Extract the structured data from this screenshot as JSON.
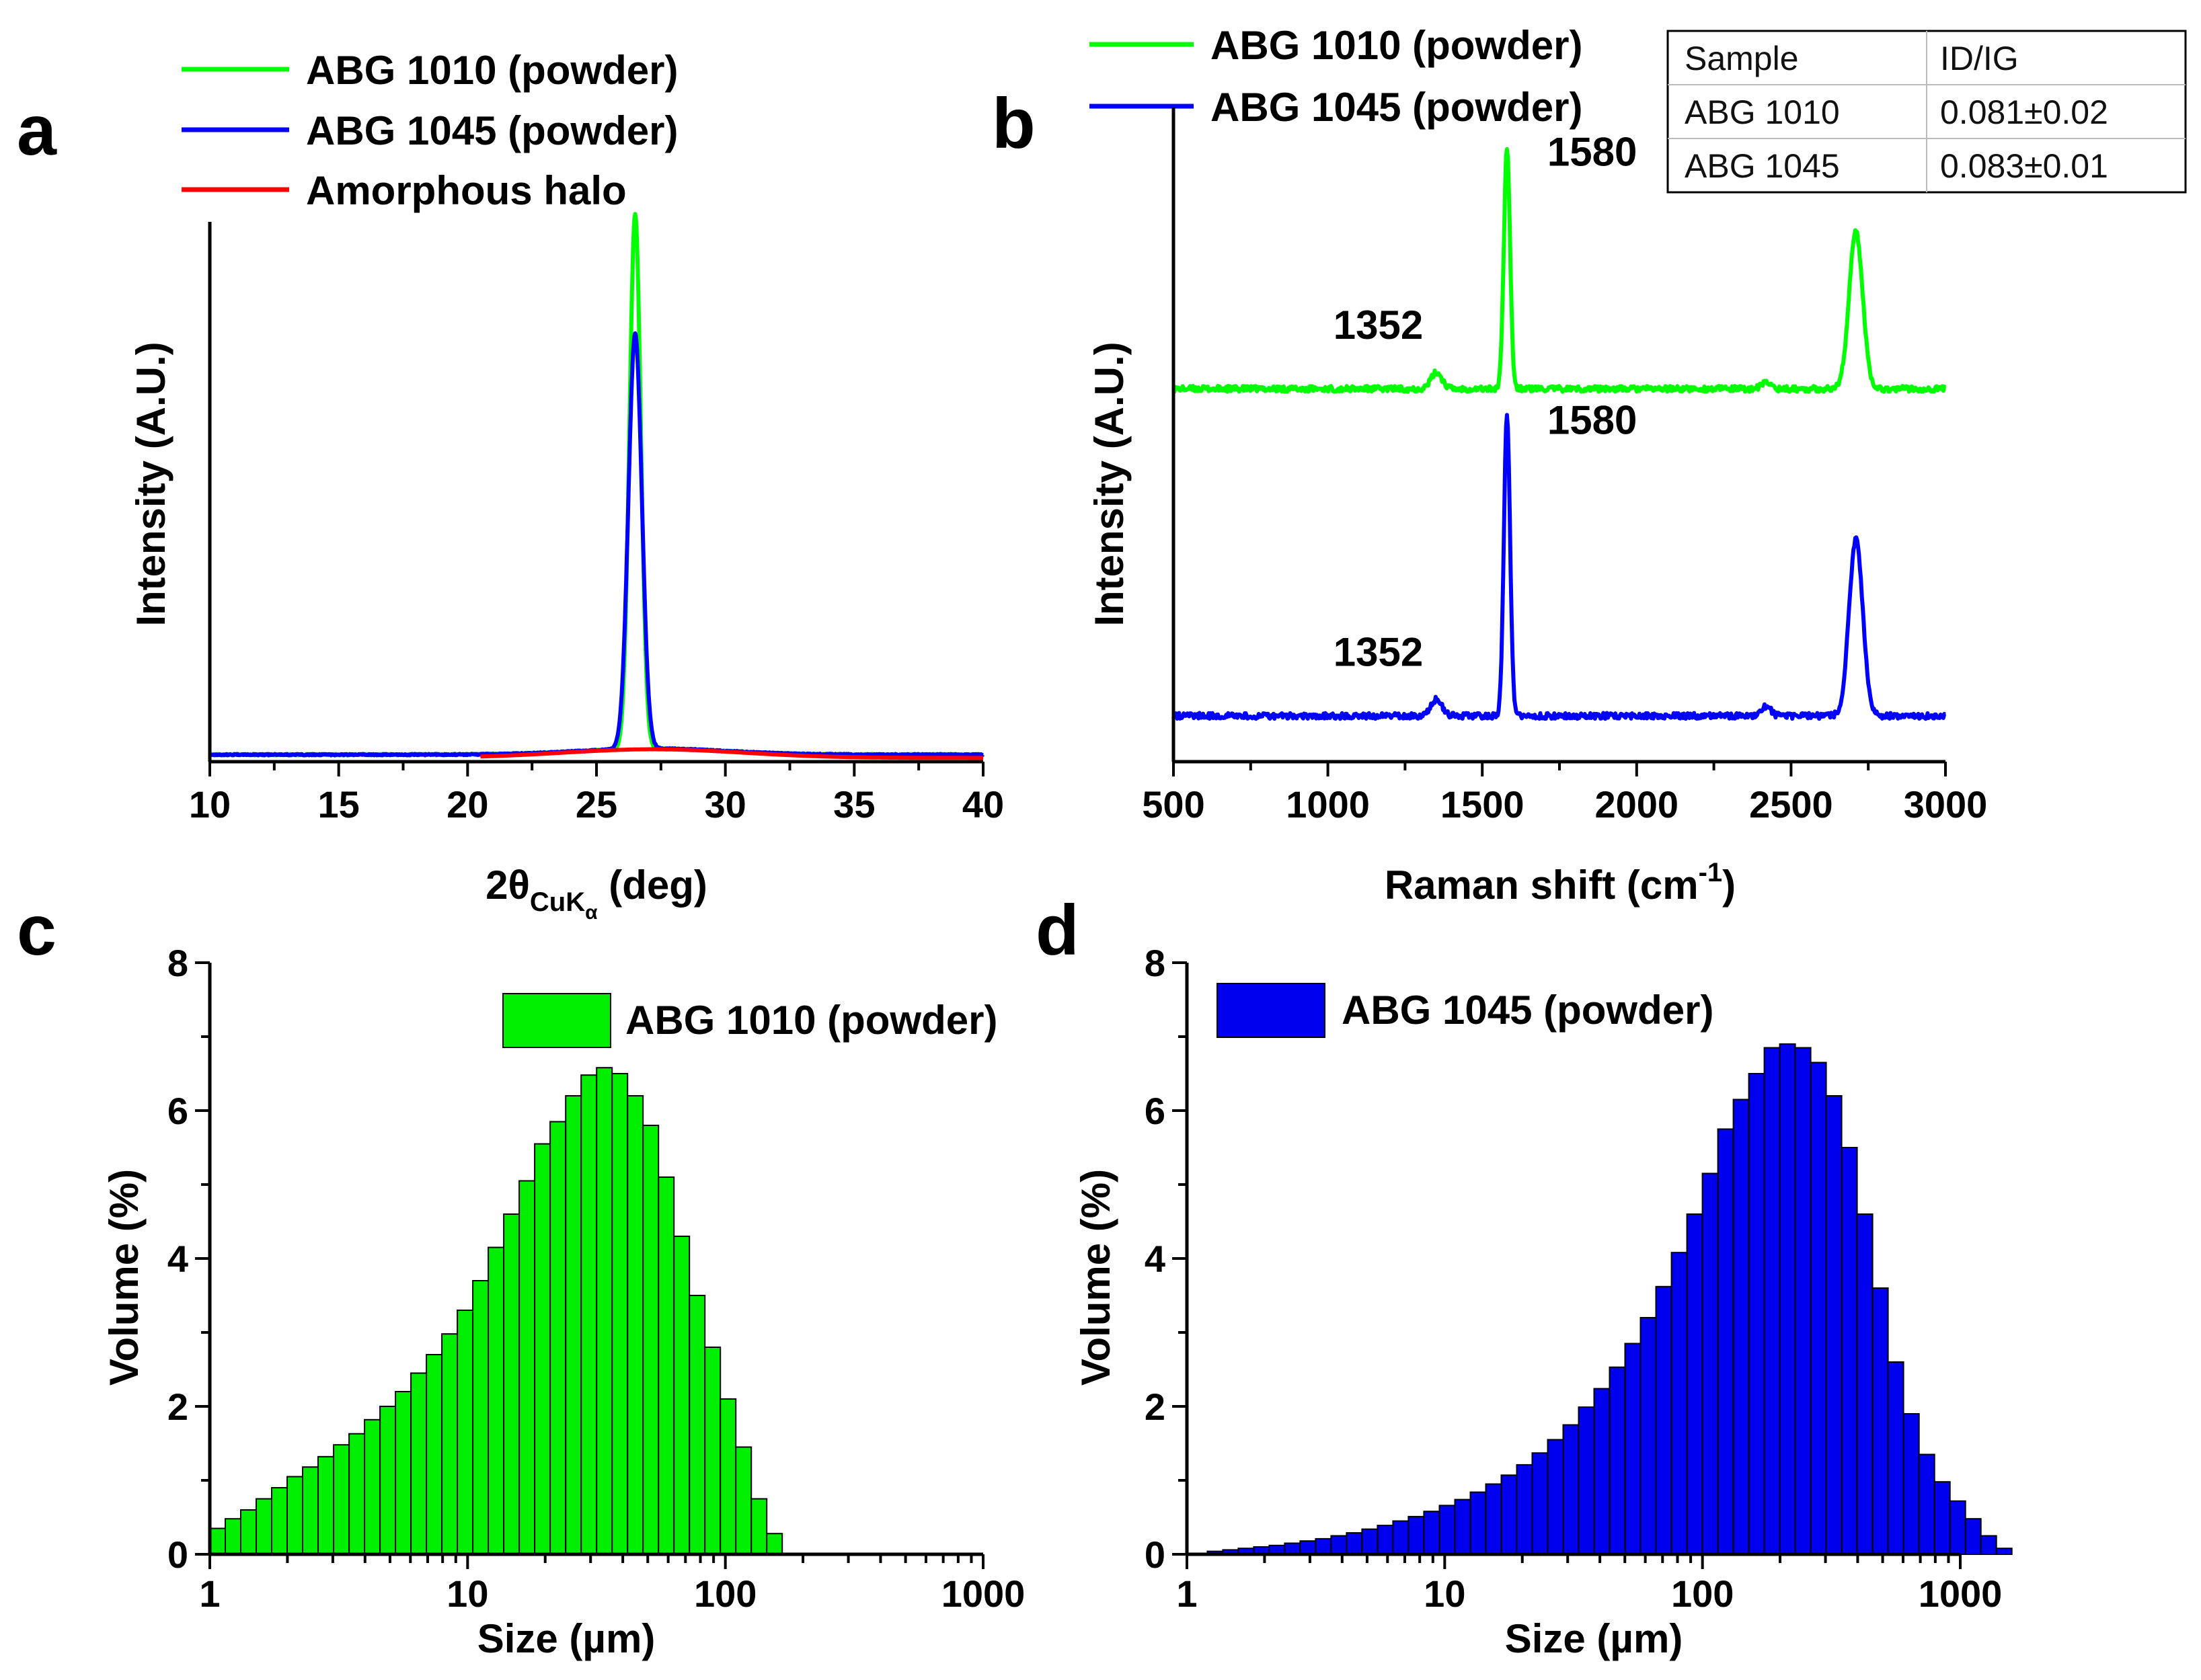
{
  "chart_data": [
    {
      "panel": "a",
      "type": "line",
      "xlabel_main": "2θ",
      "xlabel_sub": "CuK",
      "xlabel_subsub": "α",
      "xlabel_unit": " (deg)",
      "ylabel": "Intensity (A.U.)",
      "xlim": [
        10,
        40
      ],
      "ylim": [
        0,
        100
      ],
      "xticks": [
        10,
        15,
        20,
        25,
        30,
        35,
        40
      ],
      "yticks_visible": false,
      "legend": [
        "ABG 1010 (powder)",
        "ABG 1045 (powder)",
        "Amorphous halo"
      ],
      "series": [
        {
          "name": "ABG 1010 (powder)",
          "color": "#00ff00",
          "baseline": 1.3,
          "peaks": [
            {
              "center": 26.5,
              "height": 99,
              "width": 0.22
            }
          ],
          "halo": {
            "center": 27.2,
            "height": 1.1,
            "width": 2.8
          }
        },
        {
          "name": "ABG 1045 (powder)",
          "color": "#0000ff",
          "baseline": 1.3,
          "peaks": [
            {
              "center": 26.5,
              "height": 77,
              "width": 0.26
            }
          ],
          "halo": {
            "center": 27.2,
            "height": 1.1,
            "width": 2.8
          }
        },
        {
          "name": "Amorphous halo",
          "color": "#ff0000",
          "baseline": 0.7,
          "range": [
            20.5,
            40
          ],
          "halo": {
            "center": 27.2,
            "height": 1.6,
            "width": 3.5
          }
        }
      ]
    },
    {
      "panel": "b",
      "type": "line",
      "xlabel": "Raman shift (cm",
      "xlabel_sup": "-1",
      "xlabel_close": ")",
      "ylabel": "Intensity (A.U.)",
      "xlim": [
        500,
        3000
      ],
      "ylim": [
        0,
        100
      ],
      "xticks": [
        500,
        1000,
        1500,
        2000,
        2500,
        3000
      ],
      "yticks_visible": false,
      "legend": [
        "ABG 1010 (powder)",
        "ABG 1045 (powder)"
      ],
      "series": [
        {
          "name": "ABG 1010 (powder)",
          "color": "#00ff00",
          "baseline": 57,
          "peaks": [
            {
              "center": 1352,
              "height": 2.5,
              "width": 18
            },
            {
              "center": 1580,
              "height": 37,
              "width": 10
            },
            {
              "center": 2420,
              "height": 1.0,
              "width": 15
            },
            {
              "center": 2710,
              "height": 24,
              "width": 22
            }
          ]
        },
        {
          "name": "ABG 1045 (powder)",
          "color": "#0000ff",
          "baseline": 7,
          "peaks": [
            {
              "center": 1352,
              "height": 2.5,
              "width": 18
            },
            {
              "center": 1580,
              "height": 46,
              "width": 10
            },
            {
              "center": 2420,
              "height": 1.5,
              "width": 15
            },
            {
              "center": 2710,
              "height": 27,
              "width": 22
            }
          ]
        }
      ],
      "annotations": [
        {
          "text": "1580",
          "series": 0,
          "x": 1580
        },
        {
          "text": "1352",
          "series": 0,
          "x": 1352
        },
        {
          "text": "1580",
          "series": 1,
          "x": 1580
        },
        {
          "text": "1352",
          "series": 1,
          "x": 1352
        }
      ],
      "table": {
        "headers": [
          "Sample",
          "ID/IG"
        ],
        "rows": [
          [
            "ABG 1010",
            "0.081±0.02"
          ],
          [
            "ABG 1045",
            "0.083±0.01"
          ]
        ]
      }
    },
    {
      "panel": "c",
      "type": "bar",
      "xscale": "log",
      "xlabel": "Size (µm)",
      "ylabel": "Volume (%)",
      "xlim": [
        1,
        1000
      ],
      "ylim": [
        0,
        8
      ],
      "xticks": [
        1,
        10,
        100,
        1000
      ],
      "yticks": [
        0,
        2,
        4,
        6,
        8
      ],
      "legend": [
        "ABG 1010 (powder)"
      ],
      "color": "#00ee00",
      "bin_start": 1.0,
      "bin_ratio": 1.1482,
      "values": [
        0.35,
        0.48,
        0.6,
        0.75,
        0.9,
        1.05,
        1.18,
        1.32,
        1.48,
        1.63,
        1.82,
        2.0,
        2.2,
        2.45,
        2.7,
        2.98,
        3.3,
        3.7,
        4.15,
        4.6,
        5.05,
        5.55,
        5.85,
        6.2,
        6.48,
        6.58,
        6.5,
        6.2,
        5.8,
        5.1,
        4.3,
        3.5,
        2.8,
        2.1,
        1.45,
        0.75,
        0.28
      ]
    },
    {
      "panel": "d",
      "type": "bar",
      "xscale": "log",
      "xlabel": "Size (µm)",
      "ylabel": "Volume (%)",
      "xlim": [
        1,
        1000
      ],
      "ylim": [
        0,
        8
      ],
      "xticks": [
        1,
        10,
        100,
        1000
      ],
      "yticks": [
        0,
        2,
        4,
        6,
        8
      ],
      "legend": [
        "ABG 1045 (powder)"
      ],
      "color": "#0000ee",
      "bin_start": 1.2,
      "bin_ratio": 1.1482,
      "values": [
        0.04,
        0.06,
        0.08,
        0.1,
        0.12,
        0.15,
        0.18,
        0.21,
        0.25,
        0.29,
        0.34,
        0.39,
        0.45,
        0.51,
        0.58,
        0.66,
        0.74,
        0.84,
        0.95,
        1.07,
        1.21,
        1.37,
        1.55,
        1.75,
        1.99,
        2.24,
        2.53,
        2.85,
        3.2,
        3.62,
        4.08,
        4.6,
        5.15,
        5.75,
        6.15,
        6.5,
        6.85,
        6.9,
        6.85,
        6.65,
        6.2,
        5.5,
        4.6,
        3.6,
        2.6,
        1.9,
        1.35,
        0.98,
        0.72,
        0.48,
        0.25,
        0.08
      ]
    }
  ],
  "panel_letters": {
    "a": "a",
    "b": "b",
    "c": "c",
    "d": "d"
  }
}
